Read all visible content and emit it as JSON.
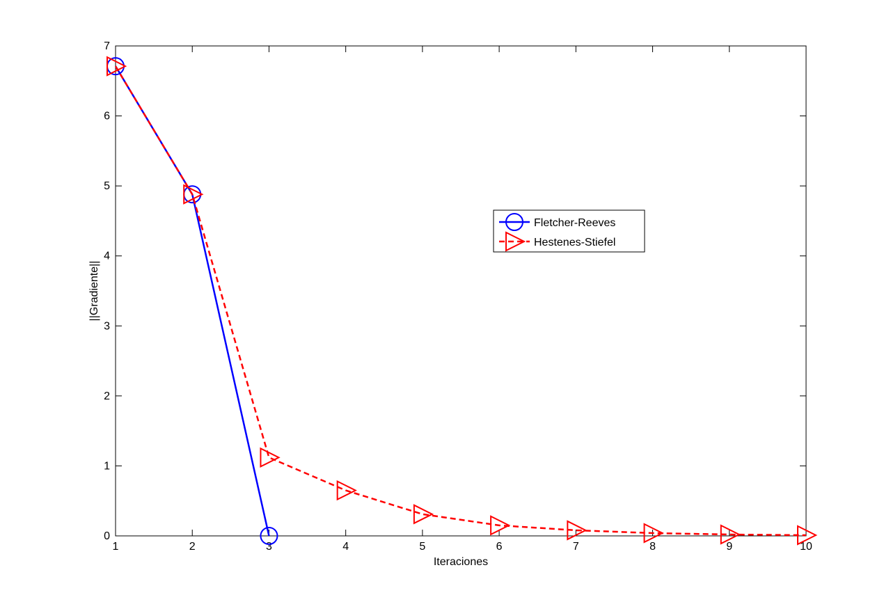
{
  "chart_data": {
    "type": "line",
    "x_label": "Iteraciones",
    "y_label": "||Gradiente||",
    "xlim": [
      1,
      10
    ],
    "xticks": [
      1,
      2,
      3,
      4,
      5,
      6,
      7,
      8,
      9,
      10
    ],
    "ylim": [
      0,
      7
    ],
    "yticks": [
      0,
      1,
      2,
      3,
      4,
      5,
      6,
      7
    ],
    "grid": false,
    "legend_position": "right",
    "series": [
      {
        "name": "Fletcher-Reeves",
        "color": "#0000ff",
        "line_style": "solid",
        "marker": "circle",
        "x": [
          1,
          2,
          3
        ],
        "values": [
          6.71,
          4.88,
          0
        ]
      },
      {
        "name": "Hestenes-Stiefel",
        "color": "#ff0000",
        "line_style": "dashed",
        "marker": "triangle-right",
        "x": [
          1,
          2,
          3,
          4,
          5,
          6,
          7,
          8,
          9,
          10
        ],
        "values": [
          6.71,
          4.88,
          1.12,
          0.65,
          0.31,
          0.15,
          0.08,
          0.04,
          0.02,
          0.01
        ]
      }
    ]
  }
}
